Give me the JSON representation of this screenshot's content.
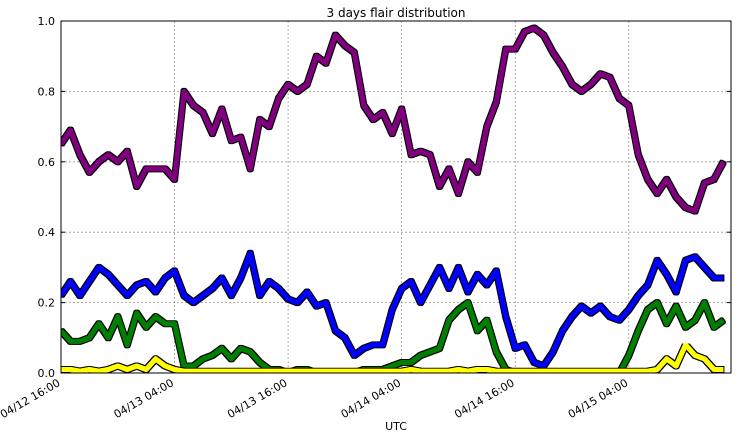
{
  "chart_data": {
    "type": "line",
    "title": "3 days flair distribution",
    "xlabel": "UTC",
    "x": [
      "04/12 16:00",
      "04/12 17:00",
      "04/12 18:00",
      "04/12 19:00",
      "04/12 20:00",
      "04/12 21:00",
      "04/12 22:00",
      "04/12 23:00",
      "04/13 00:00",
      "04/13 01:00",
      "04/13 02:00",
      "04/13 03:00",
      "04/13 04:00",
      "04/13 05:00",
      "04/13 06:00",
      "04/13 07:00",
      "04/13 08:00",
      "04/13 09:00",
      "04/13 10:00",
      "04/13 11:00",
      "04/13 12:00",
      "04/13 13:00",
      "04/13 14:00",
      "04/13 15:00",
      "04/13 16:00",
      "04/13 17:00",
      "04/13 18:00",
      "04/13 19:00",
      "04/13 20:00",
      "04/13 21:00",
      "04/13 22:00",
      "04/13 23:00",
      "04/14 00:00",
      "04/14 01:00",
      "04/14 02:00",
      "04/14 03:00",
      "04/14 04:00",
      "04/14 05:00",
      "04/14 06:00",
      "04/14 07:00",
      "04/14 08:00",
      "04/14 09:00",
      "04/14 10:00",
      "04/14 11:00",
      "04/14 12:00",
      "04/14 13:00",
      "04/14 14:00",
      "04/14 15:00",
      "04/14 16:00",
      "04/14 17:00",
      "04/14 18:00",
      "04/14 19:00",
      "04/14 20:00",
      "04/14 21:00",
      "04/14 22:00",
      "04/14 23:00",
      "04/15 00:00",
      "04/15 01:00",
      "04/15 02:00",
      "04/15 03:00",
      "04/15 04:00",
      "04/15 05:00",
      "04/15 06:00",
      "04/15 07:00",
      "04/15 08:00",
      "04/15 09:00",
      "04/15 10:00",
      "04/15 11:00",
      "04/15 12:00",
      "04/15 13:00",
      "04/15 14:00"
    ],
    "series": [
      {
        "color": "#800080",
        "values": [
          0.65,
          0.69,
          0.62,
          0.57,
          0.6,
          0.62,
          0.6,
          0.63,
          0.53,
          0.58,
          0.58,
          0.58,
          0.55,
          0.8,
          0.76,
          0.74,
          0.68,
          0.75,
          0.66,
          0.67,
          0.58,
          0.72,
          0.7,
          0.78,
          0.82,
          0.8,
          0.82,
          0.9,
          0.88,
          0.96,
          0.93,
          0.91,
          0.76,
          0.72,
          0.74,
          0.68,
          0.75,
          0.62,
          0.63,
          0.62,
          0.53,
          0.58,
          0.51,
          0.6,
          0.57,
          0.7,
          0.77,
          0.92,
          0.92,
          0.97,
          0.98,
          0.96,
          0.91,
          0.87,
          0.82,
          0.8,
          0.82,
          0.85,
          0.84,
          0.78,
          0.76,
          0.62,
          0.55,
          0.51,
          0.55,
          0.5,
          0.47,
          0.46,
          0.54,
          0.55,
          0.6
        ]
      },
      {
        "color": "#0000ff",
        "values": [
          0.22,
          0.26,
          0.22,
          0.26,
          0.3,
          0.28,
          0.25,
          0.22,
          0.25,
          0.26,
          0.23,
          0.27,
          0.29,
          0.22,
          0.2,
          0.22,
          0.24,
          0.27,
          0.22,
          0.27,
          0.34,
          0.22,
          0.26,
          0.24,
          0.21,
          0.2,
          0.23,
          0.19,
          0.2,
          0.12,
          0.1,
          0.05,
          0.07,
          0.08,
          0.08,
          0.18,
          0.24,
          0.26,
          0.2,
          0.25,
          0.3,
          0.24,
          0.3,
          0.23,
          0.28,
          0.25,
          0.29,
          0.16,
          0.07,
          0.08,
          0.03,
          0.02,
          0.06,
          0.12,
          0.16,
          0.19,
          0.17,
          0.19,
          0.16,
          0.15,
          0.18,
          0.22,
          0.25,
          0.32,
          0.28,
          0.23,
          0.32,
          0.33,
          0.3,
          0.27,
          0.27
        ]
      },
      {
        "color": "#008000",
        "values": [
          0.12,
          0.09,
          0.09,
          0.1,
          0.14,
          0.1,
          0.16,
          0.08,
          0.17,
          0.13,
          0.16,
          0.14,
          0.14,
          0.02,
          0.02,
          0.04,
          0.05,
          0.07,
          0.04,
          0.07,
          0.06,
          0.03,
          0.01,
          0.01,
          0,
          0.01,
          0.01,
          0,
          0,
          0,
          0,
          0,
          0.01,
          0.01,
          0.01,
          0.02,
          0.03,
          0.03,
          0.05,
          0.06,
          0.07,
          0.15,
          0.18,
          0.2,
          0.12,
          0.15,
          0.06,
          0.01,
          0,
          0,
          0,
          0,
          0,
          0,
          0,
          0,
          0,
          0,
          0,
          0,
          0.05,
          0.12,
          0.18,
          0.2,
          0.14,
          0.19,
          0.13,
          0.15,
          0.2,
          0.13,
          0.15
        ]
      },
      {
        "color": "#ffff00",
        "values": [
          0.01,
          0.01,
          0.005,
          0.01,
          0.005,
          0.01,
          0.02,
          0.01,
          0.02,
          0.01,
          0.04,
          0.02,
          0.01,
          0.005,
          0.005,
          0.005,
          0.005,
          0.005,
          0.005,
          0.005,
          0.005,
          0.005,
          0.005,
          0.005,
          0.005,
          0.005,
          0.005,
          0.005,
          0.005,
          0.005,
          0.005,
          0.005,
          0.005,
          0.005,
          0.005,
          0.005,
          0.005,
          0.01,
          0.005,
          0.005,
          0.005,
          0.005,
          0.01,
          0.005,
          0.01,
          0.01,
          0.005,
          0.005,
          0.005,
          0.005,
          0.005,
          0.005,
          0.005,
          0.005,
          0.005,
          0.005,
          0.005,
          0.005,
          0.005,
          0.005,
          0.005,
          0.005,
          0.005,
          0.01,
          0.04,
          0.02,
          0.08,
          0.05,
          0.04,
          0.01,
          0.01
        ]
      }
    ],
    "xlim": [
      "04/12 16:00",
      "04/15 14:48"
    ],
    "xticks": [
      "04/12 16:00",
      "04/13 04:00",
      "04/13 16:00",
      "04/14 04:00",
      "04/14 16:00",
      "04/15 04:00"
    ],
    "ylim": [
      0,
      1
    ],
    "yticks": [
      {
        "value": 0,
        "label": "0.0"
      },
      0.2,
      0.4,
      0.6,
      0.8,
      {
        "value": 1,
        "label": "1.0"
      }
    ],
    "grid": true
  }
}
